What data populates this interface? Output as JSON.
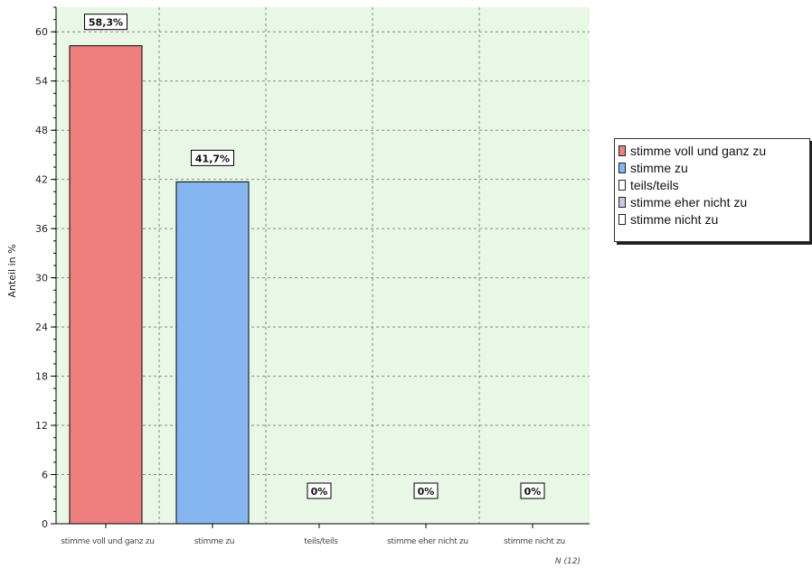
{
  "chart_data": {
    "type": "bar",
    "categories": [
      "stimme voll und ganz zu",
      "stimme zu",
      "teils/teils",
      "stimme eher nicht zu",
      "stimme nicht zu"
    ],
    "values": [
      58.3,
      41.7,
      0,
      0,
      0
    ],
    "data_labels": [
      "58,3%",
      "41,7%",
      "0%",
      "0%",
      "0%"
    ],
    "colors": [
      "#ef7f7f",
      "#86b6f0",
      "#ffffff",
      "#c7c7e6",
      "#ffffff"
    ],
    "ylabel": "Anteil in %",
    "ylim": [
      0,
      63
    ],
    "yticks": [
      0,
      6,
      12,
      18,
      24,
      30,
      36,
      42,
      48,
      54,
      60
    ],
    "ytick_labels": [
      "0",
      "6",
      "12",
      "18",
      "24",
      "30",
      "36",
      "42",
      "48",
      "54",
      "60"
    ],
    "grid": true,
    "background": "#e8f7e6",
    "legend_position": "right",
    "n_label": "N (12)"
  },
  "legend": {
    "items": [
      {
        "label": "stimme voll und ganz zu",
        "color": "#ef7f7f"
      },
      {
        "label": "stimme zu",
        "color": "#86b6f0"
      },
      {
        "label": "teils/teils",
        "color": "#ffffff"
      },
      {
        "label": "stimme eher nicht zu",
        "color": "#c7c7e6"
      },
      {
        "label": "stimme nicht zu",
        "color": "#ffffff"
      }
    ]
  }
}
